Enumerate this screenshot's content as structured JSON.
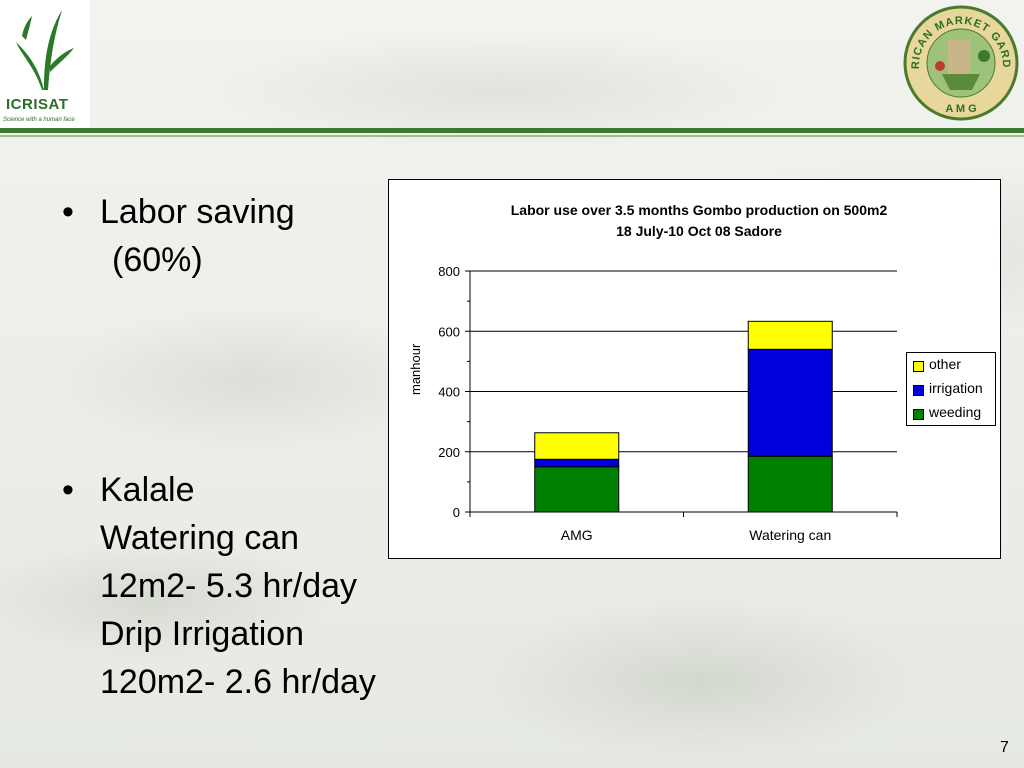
{
  "header": {
    "left_logo": {
      "name": "ICRISAT",
      "tagline": "Science with a human face"
    },
    "right_logo": {
      "arc_text": "AFRICAN MARKET GARDEN",
      "bottom_text": "A M G"
    }
  },
  "bullets": [
    {
      "lines": [
        "Labor saving",
        "(60%)"
      ]
    },
    {
      "lines": [
        "Kalale",
        "Watering can",
        "12m2- 5.3 hr/day",
        "Drip Irrigation",
        "120m2- 2.6 hr/day"
      ]
    }
  ],
  "page_number": "7",
  "colors": {
    "other": "#ffff00",
    "irrigation": "#0000dd",
    "weeding": "#008000",
    "header_rule": "#3b7a2e"
  },
  "chart_data": {
    "type": "bar",
    "stacked": true,
    "title": "Labor use over 3.5 months Gombo production on 500m2",
    "subtitle": "18 July-10 Oct 08 Sadore",
    "ylabel": "manhour",
    "xlabel": "",
    "ylim": [
      0,
      800
    ],
    "yticks": [
      0,
      200,
      400,
      600,
      800
    ],
    "grid": true,
    "legend_position": "right",
    "categories": [
      "AMG",
      "Watering can"
    ],
    "series": [
      {
        "name": "weeding",
        "values": [
          150,
          185
        ]
      },
      {
        "name": "irrigation",
        "values": [
          25,
          355
        ]
      },
      {
        "name": "other",
        "values": [
          88,
          93
        ]
      }
    ]
  }
}
